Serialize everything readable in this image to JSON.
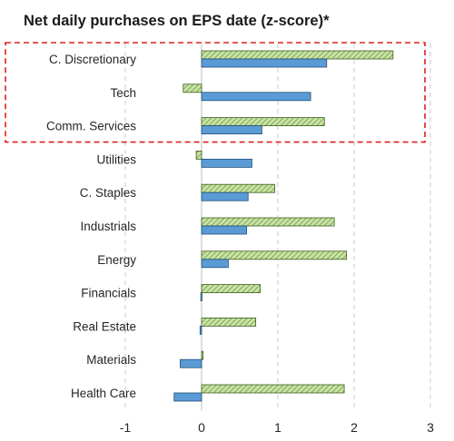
{
  "chart_data": {
    "type": "bar",
    "orientation": "horizontal",
    "title": "Net daily purchases on EPS date (z-score)*",
    "xlabel": "",
    "ylabel": "",
    "xlim": [
      -1,
      3
    ],
    "xticks": [
      -1,
      0,
      1,
      2,
      3
    ],
    "xtick_labels": [
      "-1",
      "0",
      "1",
      "2",
      "3"
    ],
    "grid": "vertical dashed",
    "legend": "none",
    "categories": [
      "C. Discretionary",
      "Tech",
      "Comm. Services",
      "Utilities",
      "C. Staples",
      "Industrials",
      "Energy",
      "Financials",
      "Real Estate",
      "Materials",
      "Health Care"
    ],
    "series": [
      {
        "color": "#c9e3a7",
        "pattern": "diagonal-hatch",
        "stroke": "#3d5c1f",
        "values": [
          2.51,
          -0.24,
          1.61,
          -0.07,
          0.96,
          1.74,
          1.9,
          0.77,
          0.71,
          0.02,
          1.87
        ]
      },
      {
        "color": "#5b9bd5",
        "pattern": "solid",
        "stroke": "#1f4e79",
        "values": [
          1.64,
          1.43,
          0.79,
          0.66,
          0.61,
          0.59,
          0.35,
          -0.01,
          -0.02,
          -0.28,
          -0.36
        ]
      }
    ],
    "highlight": {
      "categories": [
        "C. Discretionary",
        "Tech",
        "Comm. Services"
      ],
      "style": "red dashed box"
    }
  }
}
